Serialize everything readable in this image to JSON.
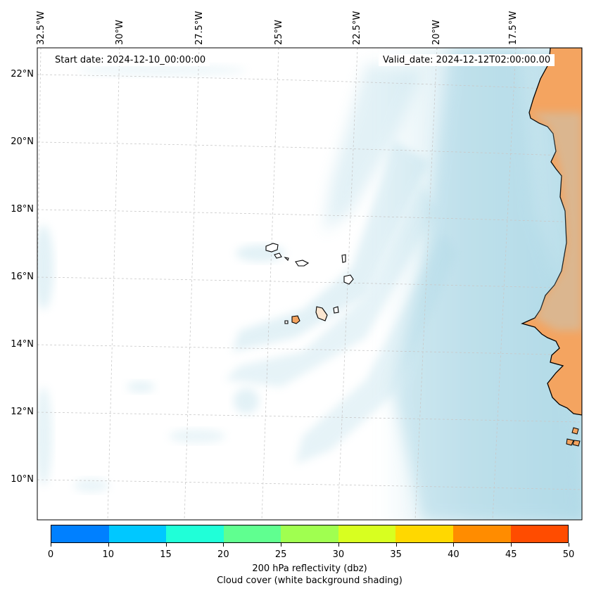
{
  "map": {
    "start_date": "Start date: 2024-12-10_00:00:00",
    "valid_date": "Valid_date: 2024-12-12T02:00:00.00",
    "latitude_labels": [
      "22°N",
      "20°N",
      "18°N",
      "16°N",
      "14°N",
      "12°N",
      "10°N"
    ],
    "longitude_labels": [
      "32.5°W",
      "30°W",
      "27.5°W",
      "25°W",
      "22.5°W",
      "20°W",
      "17.5°W"
    ],
    "colors": {
      "cloud": "#add8e6",
      "land": "#f4a460",
      "coastline": "#000000",
      "gridline": "#c8c8c8"
    },
    "icon": "coastline-map"
  },
  "colorbar": {
    "ticks": [
      "0",
      "10",
      "15",
      "20",
      "25",
      "30",
      "35",
      "40",
      "45",
      "50"
    ],
    "colors": [
      "#0080ff",
      "#00c8ff",
      "#20ffd8",
      "#60ff90",
      "#a0ff50",
      "#d8ff20",
      "#ffd800",
      "#ff8c00",
      "#ff4c00"
    ],
    "label_line1": "200 hPa reflectivity (dbz)",
    "label_line2": "Cloud cover (white background shading)"
  }
}
